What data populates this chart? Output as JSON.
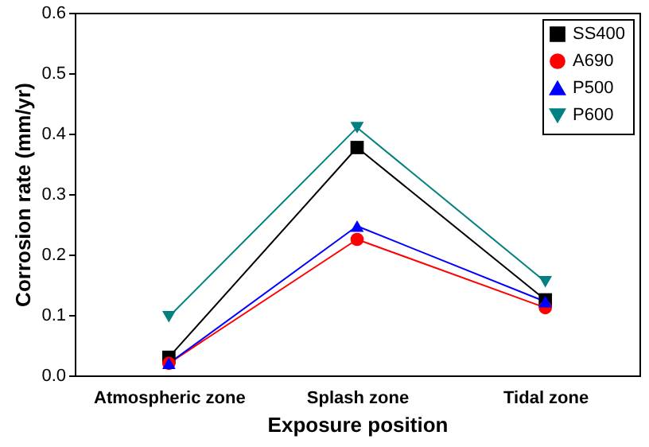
{
  "chart_data": {
    "type": "line",
    "xlabel": "Exposure position",
    "ylabel": "Corrosion rate (mm/yr)",
    "categories": [
      "Atmospheric zone",
      "Splash zone",
      "Tidal zone"
    ],
    "series": [
      {
        "name": "SS400",
        "color": "#000000",
        "marker": "square",
        "values": [
          0.03,
          0.377,
          0.125
        ]
      },
      {
        "name": "A690",
        "color": "#ff0000",
        "marker": "circle",
        "values": [
          0.02,
          0.225,
          0.112
        ]
      },
      {
        "name": "P500",
        "color": "#0000ff",
        "marker": "triangle",
        "values": [
          0.02,
          0.247,
          0.122
        ]
      },
      {
        "name": "P600",
        "color": "#008080",
        "marker": "triangle-down",
        "values": [
          0.097,
          0.41,
          0.155
        ]
      }
    ],
    "ylim": [
      0,
      0.6
    ],
    "yticks": [
      {
        "value": 0,
        "label": "0.0"
      },
      0.1,
      0.2,
      0.3,
      0.4,
      0.5,
      0.6
    ],
    "grid": false,
    "legend": "top right"
  }
}
